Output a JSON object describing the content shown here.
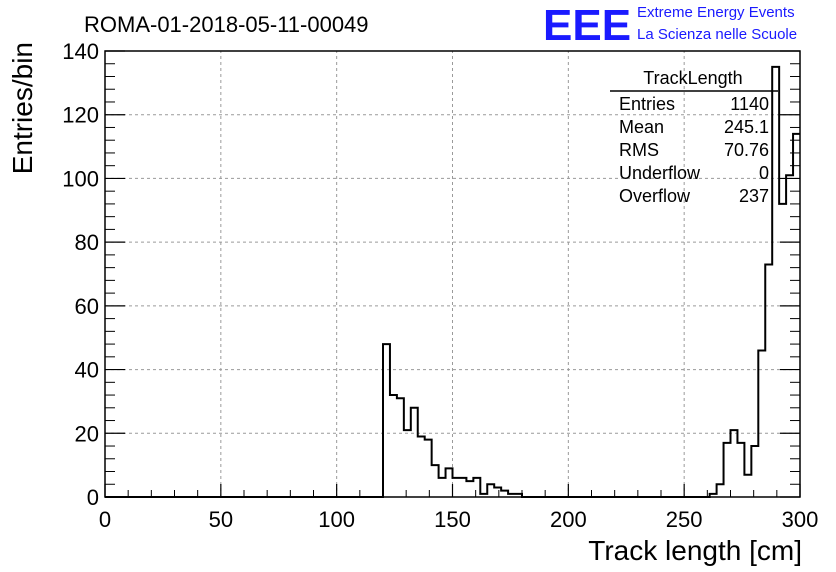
{
  "title": "ROMA-01-2018-05-11-00049",
  "logo": {
    "mark": "EEE",
    "line1": "Extreme Energy Events",
    "line2": "La Scienza nelle Scuole",
    "color": "#1a1aff"
  },
  "stats": {
    "name": "TrackLength",
    "rows": [
      {
        "label": "Entries",
        "value": "1140"
      },
      {
        "label": "Mean",
        "value": "245.1"
      },
      {
        "label": "RMS",
        "value": "70.76"
      },
      {
        "label": "Underflow",
        "value": "0"
      },
      {
        "label": "Overflow",
        "value": "237"
      }
    ]
  },
  "chart_data": {
    "type": "histogram",
    "title": "ROMA-01-2018-05-11-00049",
    "xlabel": "Track length [cm]",
    "ylabel": "Entries/bin",
    "xlim": [
      0,
      300
    ],
    "ylim": [
      0,
      140
    ],
    "xticks": [
      0,
      50,
      100,
      150,
      200,
      250,
      300
    ],
    "yticks": [
      0,
      20,
      40,
      60,
      80,
      100,
      120,
      140
    ],
    "grid": true,
    "bin_width": 3,
    "bins": [
      {
        "x0": 120,
        "value": 48
      },
      {
        "x0": 123,
        "value": 32
      },
      {
        "x0": 126,
        "value": 31
      },
      {
        "x0": 129,
        "value": 21
      },
      {
        "x0": 132,
        "value": 28
      },
      {
        "x0": 135,
        "value": 19
      },
      {
        "x0": 138,
        "value": 18
      },
      {
        "x0": 141,
        "value": 10
      },
      {
        "x0": 144,
        "value": 6
      },
      {
        "x0": 147,
        "value": 9
      },
      {
        "x0": 150,
        "value": 6
      },
      {
        "x0": 153,
        "value": 6
      },
      {
        "x0": 156,
        "value": 5
      },
      {
        "x0": 159,
        "value": 6
      },
      {
        "x0": 162,
        "value": 1
      },
      {
        "x0": 165,
        "value": 4
      },
      {
        "x0": 168,
        "value": 3
      },
      {
        "x0": 171,
        "value": 2
      },
      {
        "x0": 174,
        "value": 1
      },
      {
        "x0": 177,
        "value": 1
      },
      {
        "x0": 261,
        "value": 1
      },
      {
        "x0": 264,
        "value": 4
      },
      {
        "x0": 267,
        "value": 17
      },
      {
        "x0": 270,
        "value": 21
      },
      {
        "x0": 273,
        "value": 17
      },
      {
        "x0": 276,
        "value": 7
      },
      {
        "x0": 279,
        "value": 16
      },
      {
        "x0": 282,
        "value": 46
      },
      {
        "x0": 285,
        "value": 73
      },
      {
        "x0": 288,
        "value": 135
      },
      {
        "x0": 291,
        "value": 92
      },
      {
        "x0": 294,
        "value": 101
      },
      {
        "x0": 297,
        "value": 114
      }
    ]
  }
}
